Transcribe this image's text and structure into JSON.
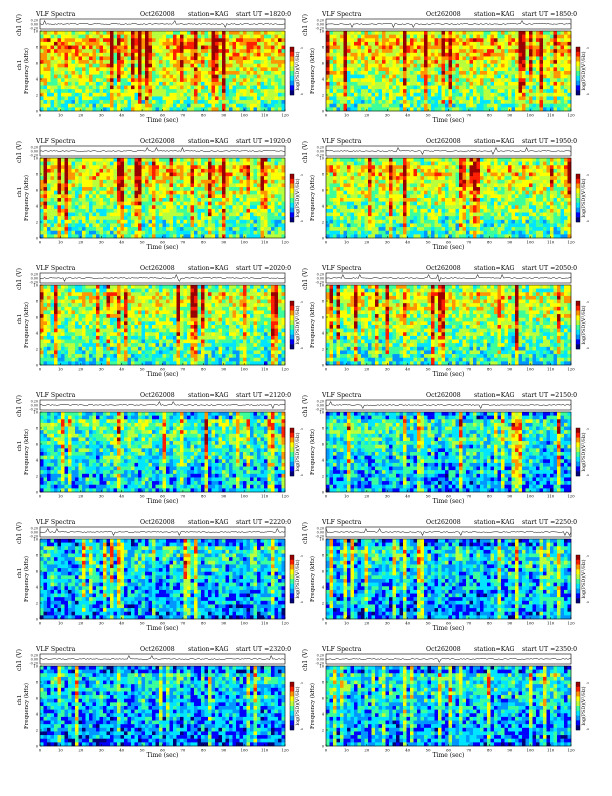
{
  "colors": {
    "colormap": [
      "#00007a",
      "#0000ff",
      "#0096ff",
      "#00e5ff",
      "#3cff9b",
      "#b9ff3c",
      "#ffff00",
      "#ff9600",
      "#ff1e00",
      "#9b0000"
    ],
    "trace": "#000000",
    "frame": "#000000"
  },
  "chart_data": [
    {
      "type": "heatmap",
      "title": "VLF Spectra",
      "date": "Oct262008",
      "station": "station=KAG",
      "ut_label": "start  UT =1820:0",
      "xlabel": "Time (sec)",
      "ylabel": "Frequency (kHz)",
      "trace_label": "ch1 (V)",
      "trace_ticks": [
        "0.20",
        "0.00",
        "-0.20"
      ],
      "side_label": "ch1",
      "colorbar_label": "log(PSD)(V²/Hz)",
      "x_ticks": [
        "0",
        "10",
        "20",
        "30",
        "40",
        "50",
        "60",
        "70",
        "80",
        "90",
        "100",
        "110",
        "120"
      ],
      "xlim": [
        0,
        120
      ],
      "y_ticks": [
        "0",
        "2",
        "4",
        "6",
        "8",
        "10"
      ],
      "ylim": [
        0,
        10
      ],
      "colorbar_ticks": [
        "-3",
        "-4"
      ],
      "bias": 0.72,
      "noise_seed": 3
    },
    {
      "type": "heatmap",
      "title": "VLF Spectra",
      "date": "Oct262008",
      "station": "station=KAG",
      "ut_label": "start  UT =1850:0",
      "xlabel": "Time (sec)",
      "ylabel": "Frequency (kHz)",
      "trace_label": "ch1 (V)",
      "trace_ticks": [
        "0.20",
        "0.00",
        "-0.20"
      ],
      "side_label": "",
      "colorbar_label": "log(PSD)(V²/Hz)",
      "x_ticks": [
        "0",
        "10",
        "20",
        "30",
        "40",
        "50",
        "60",
        "70",
        "80",
        "90",
        "100",
        "110",
        "120"
      ],
      "xlim": [
        0,
        120
      ],
      "y_ticks": [
        "0",
        "2",
        "4",
        "6",
        "8",
        "10"
      ],
      "ylim": [
        0,
        10
      ],
      "colorbar_ticks": [
        "-3",
        "-4"
      ],
      "bias": 0.7,
      "noise_seed": 11
    },
    {
      "type": "heatmap",
      "title": "VLF Spectra",
      "date": "Oct262008",
      "station": "station=KAG",
      "ut_label": "start  UT =1920:0",
      "xlabel": "Time (sec)",
      "ylabel": "Frequency (kHz)",
      "trace_label": "ch1 (V)",
      "trace_ticks": [
        "0.20",
        "0.00",
        "-0.20"
      ],
      "side_label": "ch1",
      "colorbar_label": "log(PSD)(V²/Hz)",
      "x_ticks": [
        "0",
        "10",
        "20",
        "30",
        "40",
        "50",
        "60",
        "70",
        "80",
        "90",
        "100",
        "110",
        "120"
      ],
      "xlim": [
        0,
        120
      ],
      "y_ticks": [
        "0",
        "2",
        "4",
        "6",
        "8",
        "10"
      ],
      "ylim": [
        0,
        10
      ],
      "colorbar_ticks": [
        "-3",
        "-4"
      ],
      "bias": 0.66,
      "noise_seed": 19
    },
    {
      "type": "heatmap",
      "title": "VLF Spectra",
      "date": "Oct262008",
      "station": "station=KAG",
      "ut_label": "start  UT =1950:0",
      "xlabel": "Time (sec)",
      "ylabel": "Frequency (kHz)",
      "trace_label": "ch1 (V)",
      "trace_ticks": [
        "0.20",
        "0.00",
        "-0.20"
      ],
      "side_label": "",
      "colorbar_label": "log(PSD)(V²/Hz)",
      "x_ticks": [
        "0",
        "10",
        "20",
        "30",
        "40",
        "50",
        "60",
        "70",
        "80",
        "90",
        "100",
        "110",
        "120"
      ],
      "xlim": [
        0,
        120
      ],
      "y_ticks": [
        "0",
        "2",
        "4",
        "6",
        "8",
        "10"
      ],
      "ylim": [
        0,
        10
      ],
      "colorbar_ticks": [
        "-3",
        "-4"
      ],
      "bias": 0.64,
      "noise_seed": 27
    },
    {
      "type": "heatmap",
      "title": "VLF Spectra",
      "date": "Oct262008",
      "station": "station=KAG",
      "ut_label": "start  UT =2020:0",
      "xlabel": "Time (sec)",
      "ylabel": "Frequency (kHz)",
      "trace_label": "ch1 (V)",
      "trace_ticks": [
        "0.20",
        "0.00",
        "-0.20"
      ],
      "side_label": "ch1",
      "colorbar_label": "log(PSD)(V²/Hz)",
      "x_ticks": [
        "0",
        "10",
        "20",
        "30",
        "40",
        "50",
        "60",
        "70",
        "80",
        "90",
        "100",
        "110",
        "120"
      ],
      "xlim": [
        0,
        120
      ],
      "y_ticks": [
        "0",
        "2",
        "4",
        "6",
        "8",
        "10"
      ],
      "ylim": [
        0,
        10
      ],
      "colorbar_ticks": [
        "-3",
        "-4"
      ],
      "bias": 0.6,
      "noise_seed": 35
    },
    {
      "type": "heatmap",
      "title": "VLF Spectra",
      "date": "Oct262008",
      "station": "station=KAG",
      "ut_label": "start  UT =2050:0",
      "xlabel": "Time (sec)",
      "ylabel": "Frequency (kHz)",
      "trace_label": "ch1 (V)",
      "trace_ticks": [
        "0.20",
        "0.00",
        "-0.20"
      ],
      "side_label": "",
      "colorbar_label": "log(PSD)(V²/Hz)",
      "x_ticks": [
        "0",
        "10",
        "20",
        "30",
        "40",
        "50",
        "60",
        "70",
        "80",
        "90",
        "100",
        "110",
        "120"
      ],
      "xlim": [
        0,
        120
      ],
      "y_ticks": [
        "0",
        "2",
        "4",
        "6",
        "8",
        "10"
      ],
      "ylim": [
        0,
        10
      ],
      "colorbar_ticks": [
        "-3",
        "-4"
      ],
      "bias": 0.62,
      "noise_seed": 43
    },
    {
      "type": "heatmap",
      "title": "VLF Spectra",
      "date": "Oct262008",
      "station": "station=KAG",
      "ut_label": "start  UT =2120:0",
      "xlabel": "Time (sec)",
      "ylabel": "Frequency (kHz)",
      "trace_label": "ch1 (V)",
      "trace_ticks": [
        "0.20",
        "0.00",
        "-0.20"
      ],
      "side_label": "ch1",
      "colorbar_label": "log(PSD)(V²/Hz)",
      "x_ticks": [
        "0",
        "10",
        "20",
        "30",
        "40",
        "50",
        "60",
        "70",
        "80",
        "90",
        "100",
        "110",
        "120"
      ],
      "xlim": [
        0,
        120
      ],
      "y_ticks": [
        "0",
        "2",
        "4",
        "6",
        "8",
        "10"
      ],
      "ylim": [
        0,
        10
      ],
      "colorbar_ticks": [
        "-3",
        "-4"
      ],
      "bias": 0.45,
      "noise_seed": 51
    },
    {
      "type": "heatmap",
      "title": "VLF Spectra",
      "date": "Oct262008",
      "station": "station=KAG",
      "ut_label": "start  UT =2150:0",
      "xlabel": "Time (sec)",
      "ylabel": "Frequency (kHz)",
      "trace_label": "ch1 (V)",
      "trace_ticks": [
        "0.20",
        "0.00",
        "-0.20"
      ],
      "side_label": "",
      "colorbar_label": "log(PSD)(V²/Hz)",
      "x_ticks": [
        "0",
        "10",
        "20",
        "30",
        "40",
        "50",
        "60",
        "70",
        "80",
        "90",
        "100",
        "110",
        "120"
      ],
      "xlim": [
        0,
        120
      ],
      "y_ticks": [
        "0",
        "2",
        "4",
        "6",
        "8",
        "10"
      ],
      "ylim": [
        0,
        10
      ],
      "colorbar_ticks": [
        "-3",
        "-4"
      ],
      "bias": 0.4,
      "noise_seed": 59
    },
    {
      "type": "heatmap",
      "title": "VLF Spectra",
      "date": "Oct262008",
      "station": "station=KAG",
      "ut_label": "start  UT =2220:0",
      "xlabel": "Time (sec)",
      "ylabel": "Frequency (kHz)",
      "trace_label": "ch1 (V)",
      "trace_ticks": [
        "0.20",
        "0.00",
        "-0.20"
      ],
      "side_label": "ch1",
      "colorbar_label": "log(PSD)(V²/Hz)",
      "x_ticks": [
        "0",
        "10",
        "20",
        "30",
        "40",
        "50",
        "60",
        "70",
        "80",
        "90",
        "100",
        "110",
        "120"
      ],
      "xlim": [
        0,
        120
      ],
      "y_ticks": [
        "0",
        "2",
        "4",
        "6",
        "8",
        "10"
      ],
      "ylim": [
        0,
        10
      ],
      "colorbar_ticks": [
        "-3",
        "-4"
      ],
      "bias": 0.36,
      "noise_seed": 67
    },
    {
      "type": "heatmap",
      "title": "VLF Spectra",
      "date": "Oct262008",
      "station": "station=KAG",
      "ut_label": "start  UT =2250:0",
      "xlabel": "Time (sec)",
      "ylabel": "Frequency (kHz)",
      "trace_label": "ch1 (V)",
      "trace_ticks": [
        "0.20",
        "0.00",
        "-0.20"
      ],
      "side_label": "",
      "colorbar_label": "log(PSD)(V²/Hz)",
      "x_ticks": [
        "0",
        "10",
        "20",
        "30",
        "40",
        "50",
        "60",
        "70",
        "80",
        "90",
        "100",
        "110",
        "120"
      ],
      "xlim": [
        0,
        120
      ],
      "y_ticks": [
        "0",
        "2",
        "4",
        "6",
        "8",
        "10"
      ],
      "ylim": [
        0,
        10
      ],
      "colorbar_ticks": [
        "-3",
        "-4"
      ],
      "bias": 0.34,
      "noise_seed": 75
    },
    {
      "type": "heatmap",
      "title": "VLF Spectra",
      "date": "Oct262008",
      "station": "station=KAG",
      "ut_label": "start  UT =2320:0",
      "xlabel": "Time (sec)",
      "ylabel": "Frequency (kHz)",
      "trace_label": "ch1 (V)",
      "trace_ticks": [
        "0.20",
        "0.00",
        "-0.20"
      ],
      "side_label": "ch1",
      "colorbar_label": "log(PSD)(V²/Hz)",
      "x_ticks": [
        "0",
        "10",
        "20",
        "30",
        "40",
        "50",
        "60",
        "70",
        "80",
        "90",
        "100",
        "110",
        "120"
      ],
      "xlim": [
        0,
        120
      ],
      "y_ticks": [
        "0",
        "2",
        "4",
        "6",
        "8",
        "10"
      ],
      "ylim": [
        0,
        10
      ],
      "colorbar_ticks": [
        "-3",
        "-4"
      ],
      "bias": 0.33,
      "noise_seed": 83
    },
    {
      "type": "heatmap",
      "title": "VLF Spectra",
      "date": "Oct262008",
      "station": "station=KAG",
      "ut_label": "start  UT =2350:0",
      "xlabel": "Time (sec)",
      "ylabel": "Frequency (kHz)",
      "trace_label": "ch1 (V)",
      "trace_ticks": [
        "0.20",
        "0.00",
        "-0.20"
      ],
      "side_label": "",
      "colorbar_label": "log(PSD)(V²/Hz)",
      "x_ticks": [
        "0",
        "10",
        "20",
        "30",
        "40",
        "50",
        "60",
        "70",
        "80",
        "90",
        "100",
        "110",
        "120"
      ],
      "xlim": [
        0,
        120
      ],
      "y_ticks": [
        "0",
        "2",
        "4",
        "6",
        "8",
        "10"
      ],
      "ylim": [
        0,
        10
      ],
      "colorbar_ticks": [
        "-3",
        "-4"
      ],
      "bias": 0.35,
      "noise_seed": 91
    }
  ]
}
